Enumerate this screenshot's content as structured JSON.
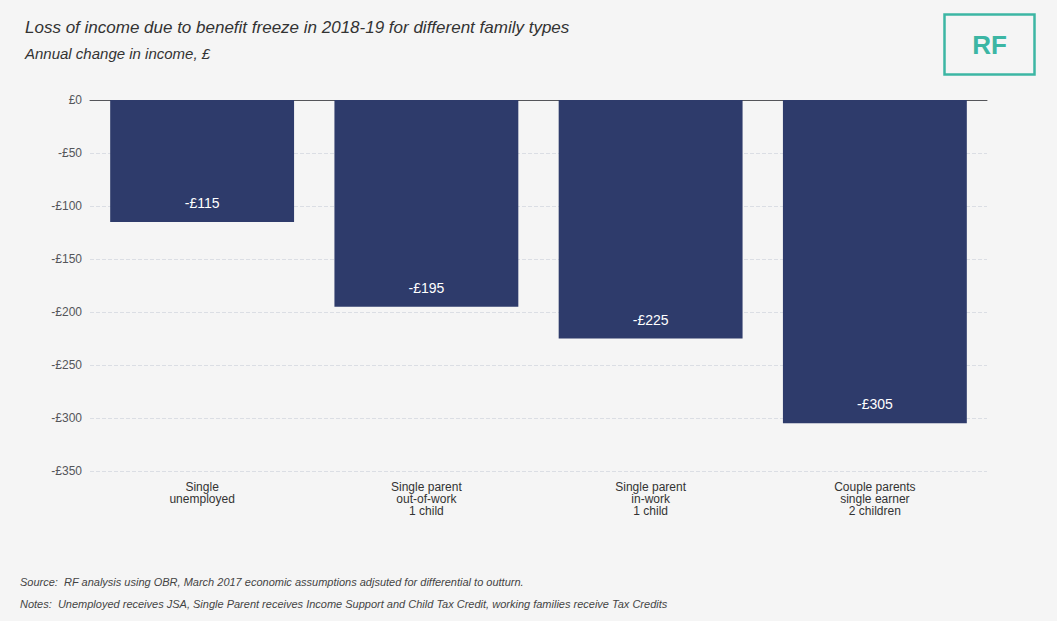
{
  "chart_data": {
    "type": "bar",
    "title": "Loss of income due to benefit freeze in 2018-19 for different family types",
    "subtitle": "Annual change in income, £",
    "categories": [
      "Single\nunemployed",
      "Single parent\nout-of-work\n1 child",
      "Single parent\nin-work\n1 child",
      "Couple parents\nsingle earner\n2 children"
    ],
    "values": [
      -115,
      -195,
      -225,
      -305
    ],
    "value_labels": [
      "-£115",
      "-£195",
      "-£225",
      "-£305"
    ],
    "data_labels": true,
    "color": "#2E3B6B",
    "ylim": [
      -350,
      0
    ],
    "yticks": [
      {
        "value": 0,
        "label": "£0"
      },
      {
        "value": -50,
        "label": "-£50"
      },
      {
        "value": -100,
        "label": "-£100"
      },
      {
        "value": -150,
        "label": "-£150"
      },
      {
        "value": -200,
        "label": "-£200"
      },
      {
        "value": -250,
        "label": "-£250"
      },
      {
        "value": -300,
        "label": "-£300"
      },
      {
        "value": -350,
        "label": "-£350"
      }
    ],
    "grid": true,
    "annotations": [
      "Source:  RF analysis using OBR, March 2017 economic assumptions adjsuted for differential to outturn.",
      "Notes:  Unemployed receives JSA, Single Parent receives Income Support and Child Tax Credit, working families receive Tax Credits",
      "RF"
    ]
  }
}
